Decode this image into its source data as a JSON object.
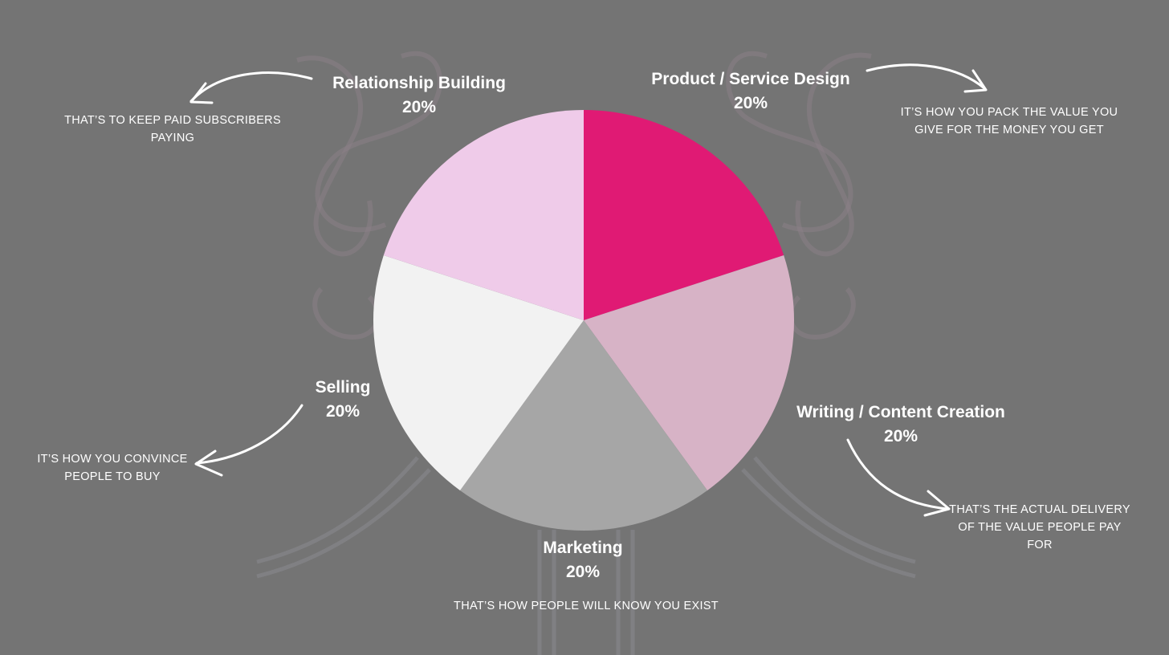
{
  "chart_data": {
    "type": "pie",
    "title": "",
    "start_angle_deg": 0,
    "direction": "clockwise",
    "slices": [
      {
        "name": "Product / Service Design",
        "value": 20,
        "label_value": "20%",
        "color": "#e01a74",
        "note": [
          "IT’S HOW YOU PACK THE VALUE YOU",
          "GIVE FOR THE MONEY YOU GET"
        ]
      },
      {
        "name": "Writing / Content Creation",
        "value": 20,
        "label_value": "20%",
        "color": "#d7b3c6",
        "note": [
          "THAT’S THE ACTUAL DELIVERY",
          "OF THE VALUE PEOPLE PAY",
          "FOR"
        ]
      },
      {
        "name": "Marketing",
        "value": 20,
        "label_value": "20%",
        "color": "#a6a6a6",
        "note": [
          "THAT’S HOW PEOPLE WILL KNOW YOU EXIST"
        ]
      },
      {
        "name": "Selling",
        "value": 20,
        "label_value": "20%",
        "color": "#f2f2f2",
        "note": [
          "IT’S HOW YOU CONVINCE",
          "PEOPLE TO BUY"
        ]
      },
      {
        "name": "Relationship Building",
        "value": 20,
        "label_value": "20%",
        "color": "#efcbe9",
        "note": [
          "THAT’S TO KEEP PAID SUBSCRIBERS",
          "PAYING"
        ]
      }
    ]
  },
  "background_color": "#747474"
}
